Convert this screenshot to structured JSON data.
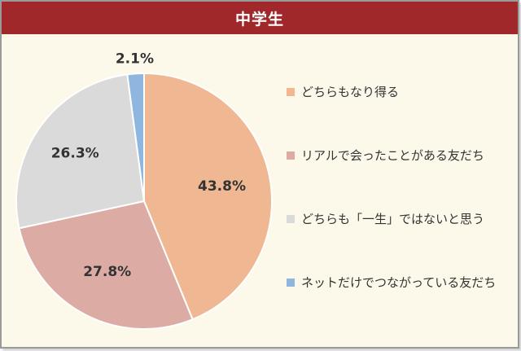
{
  "chart_data": {
    "type": "pie",
    "title": "中学生",
    "slices": [
      {
        "label": "どちらもなり得る",
        "value": 43.8,
        "display": "43.8%",
        "color": "#efb892"
      },
      {
        "label": "リアルで会ったことがある友だち",
        "value": 27.8,
        "display": "27.8%",
        "color": "#dcaca4"
      },
      {
        "label": "どちらも「一生」ではないと思う",
        "value": 26.3,
        "display": "26.3%",
        "color": "#dadada"
      },
      {
        "label": "ネットだけでつながっている友だち",
        "value": 2.1,
        "display": "2.1%",
        "color": "#8fb6de"
      }
    ],
    "legend_position": "right"
  }
}
